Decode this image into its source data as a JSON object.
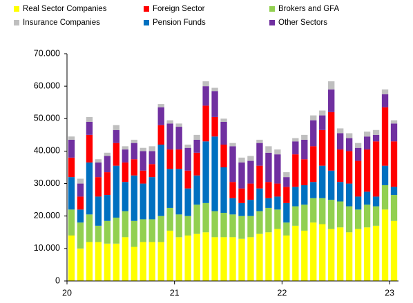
{
  "chart_data": {
    "type": "stacked_bar",
    "categories": [
      "20",
      null,
      null,
      null,
      null,
      null,
      null,
      null,
      null,
      null,
      null,
      null,
      "21",
      null,
      null,
      null,
      null,
      null,
      null,
      null,
      null,
      null,
      null,
      null,
      "22",
      null,
      null,
      null,
      null,
      null,
      null,
      null,
      null,
      null,
      null,
      null,
      "23"
    ],
    "series": [
      {
        "name": "Real Sector Companies",
        "color": "#ffff00",
        "values": [
          14000,
          10000,
          12000,
          12000,
          11500,
          11500,
          13500,
          10500,
          12000,
          12000,
          12000,
          15500,
          13500,
          14000,
          14500,
          15000,
          13500,
          13500,
          13500,
          13000,
          13500,
          14500,
          15000,
          16000,
          14000,
          17000,
          15500,
          18000,
          17500,
          16000,
          16500,
          15000,
          16000,
          16500,
          17000,
          22000,
          18500
        ]
      },
      {
        "name": "Brokers and GFA",
        "color": "#92d050",
        "values": [
          8000,
          8000,
          8500,
          5000,
          7000,
          8000,
          8000,
          8000,
          7000,
          7000,
          8000,
          7000,
          7000,
          6000,
          9000,
          9000,
          8000,
          7500,
          7000,
          7000,
          6500,
          7000,
          7500,
          6000,
          4000,
          6000,
          8000,
          7500,
          8000,
          9000,
          8000,
          8000,
          6000,
          7000,
          6000,
          7500,
          8000
        ]
      },
      {
        "name": "Pension Funds",
        "color": "#0070c0",
        "values": [
          10000,
          4000,
          16000,
          9000,
          8000,
          16000,
          9000,
          14000,
          11000,
          13000,
          22000,
          12000,
          14000,
          8500,
          9000,
          19000,
          23000,
          14000,
          5000,
          4000,
          5000,
          7000,
          3000,
          4000,
          6000,
          6000,
          6000,
          5000,
          10000,
          9000,
          6000,
          7000,
          4000,
          4000,
          3000,
          6000,
          2500
        ]
      },
      {
        "name": "Foreign Sector",
        "color": "#ff0000",
        "values": [
          6000,
          4000,
          8500,
          6000,
          7000,
          7000,
          6000,
          5000,
          4000,
          4000,
          6000,
          6000,
          6000,
          5500,
          7000,
          11000,
          6000,
          7000,
          5000,
          4500,
          5000,
          7000,
          5000,
          4000,
          5000,
          10000,
          8000,
          11000,
          11000,
          18000,
          10000,
          10000,
          11000,
          13000,
          17000,
          18000,
          14000
        ]
      },
      {
        "name": "Other Sectors",
        "color": "#7030a0",
        "values": [
          5500,
          4000,
          4000,
          4500,
          5000,
          4000,
          4000,
          5000,
          6000,
          4000,
          5500,
          8000,
          7000,
          7000,
          4000,
          6000,
          8000,
          7000,
          11000,
          8000,
          7000,
          7000,
          9000,
          9000,
          3000,
          4000,
          6000,
          8000,
          4500,
          7000,
          5000,
          4000,
          4000,
          4000,
          2000,
          4000,
          5500
        ]
      },
      {
        "name": "Insurance Companies",
        "color": "#bfbfbf",
        "values": [
          1000,
          1500,
          1500,
          1000,
          1000,
          1500,
          1000,
          1000,
          1000,
          1500,
          1000,
          1000,
          1000,
          1000,
          1500,
          1500,
          1000,
          1000,
          1000,
          1500,
          1500,
          1000,
          2000,
          1500,
          1500,
          1000,
          1500,
          1500,
          1500,
          2500,
          1500,
          1500,
          1500,
          1500,
          1500,
          1500,
          1000
        ]
      }
    ],
    "ylim": [
      0,
      70000
    ],
    "yticks": [
      0,
      {
        "value": 10000,
        "label": "10.000"
      },
      {
        "value": 20000,
        "label": "20.000"
      },
      {
        "value": 30000,
        "label": "30.000"
      },
      {
        "value": 40000,
        "label": "40.000"
      },
      {
        "value": 50000,
        "label": "50.000"
      },
      {
        "value": 60000,
        "label": "60.000"
      },
      {
        "value": 70000,
        "label": "70.000"
      }
    ],
    "legend": "top"
  }
}
